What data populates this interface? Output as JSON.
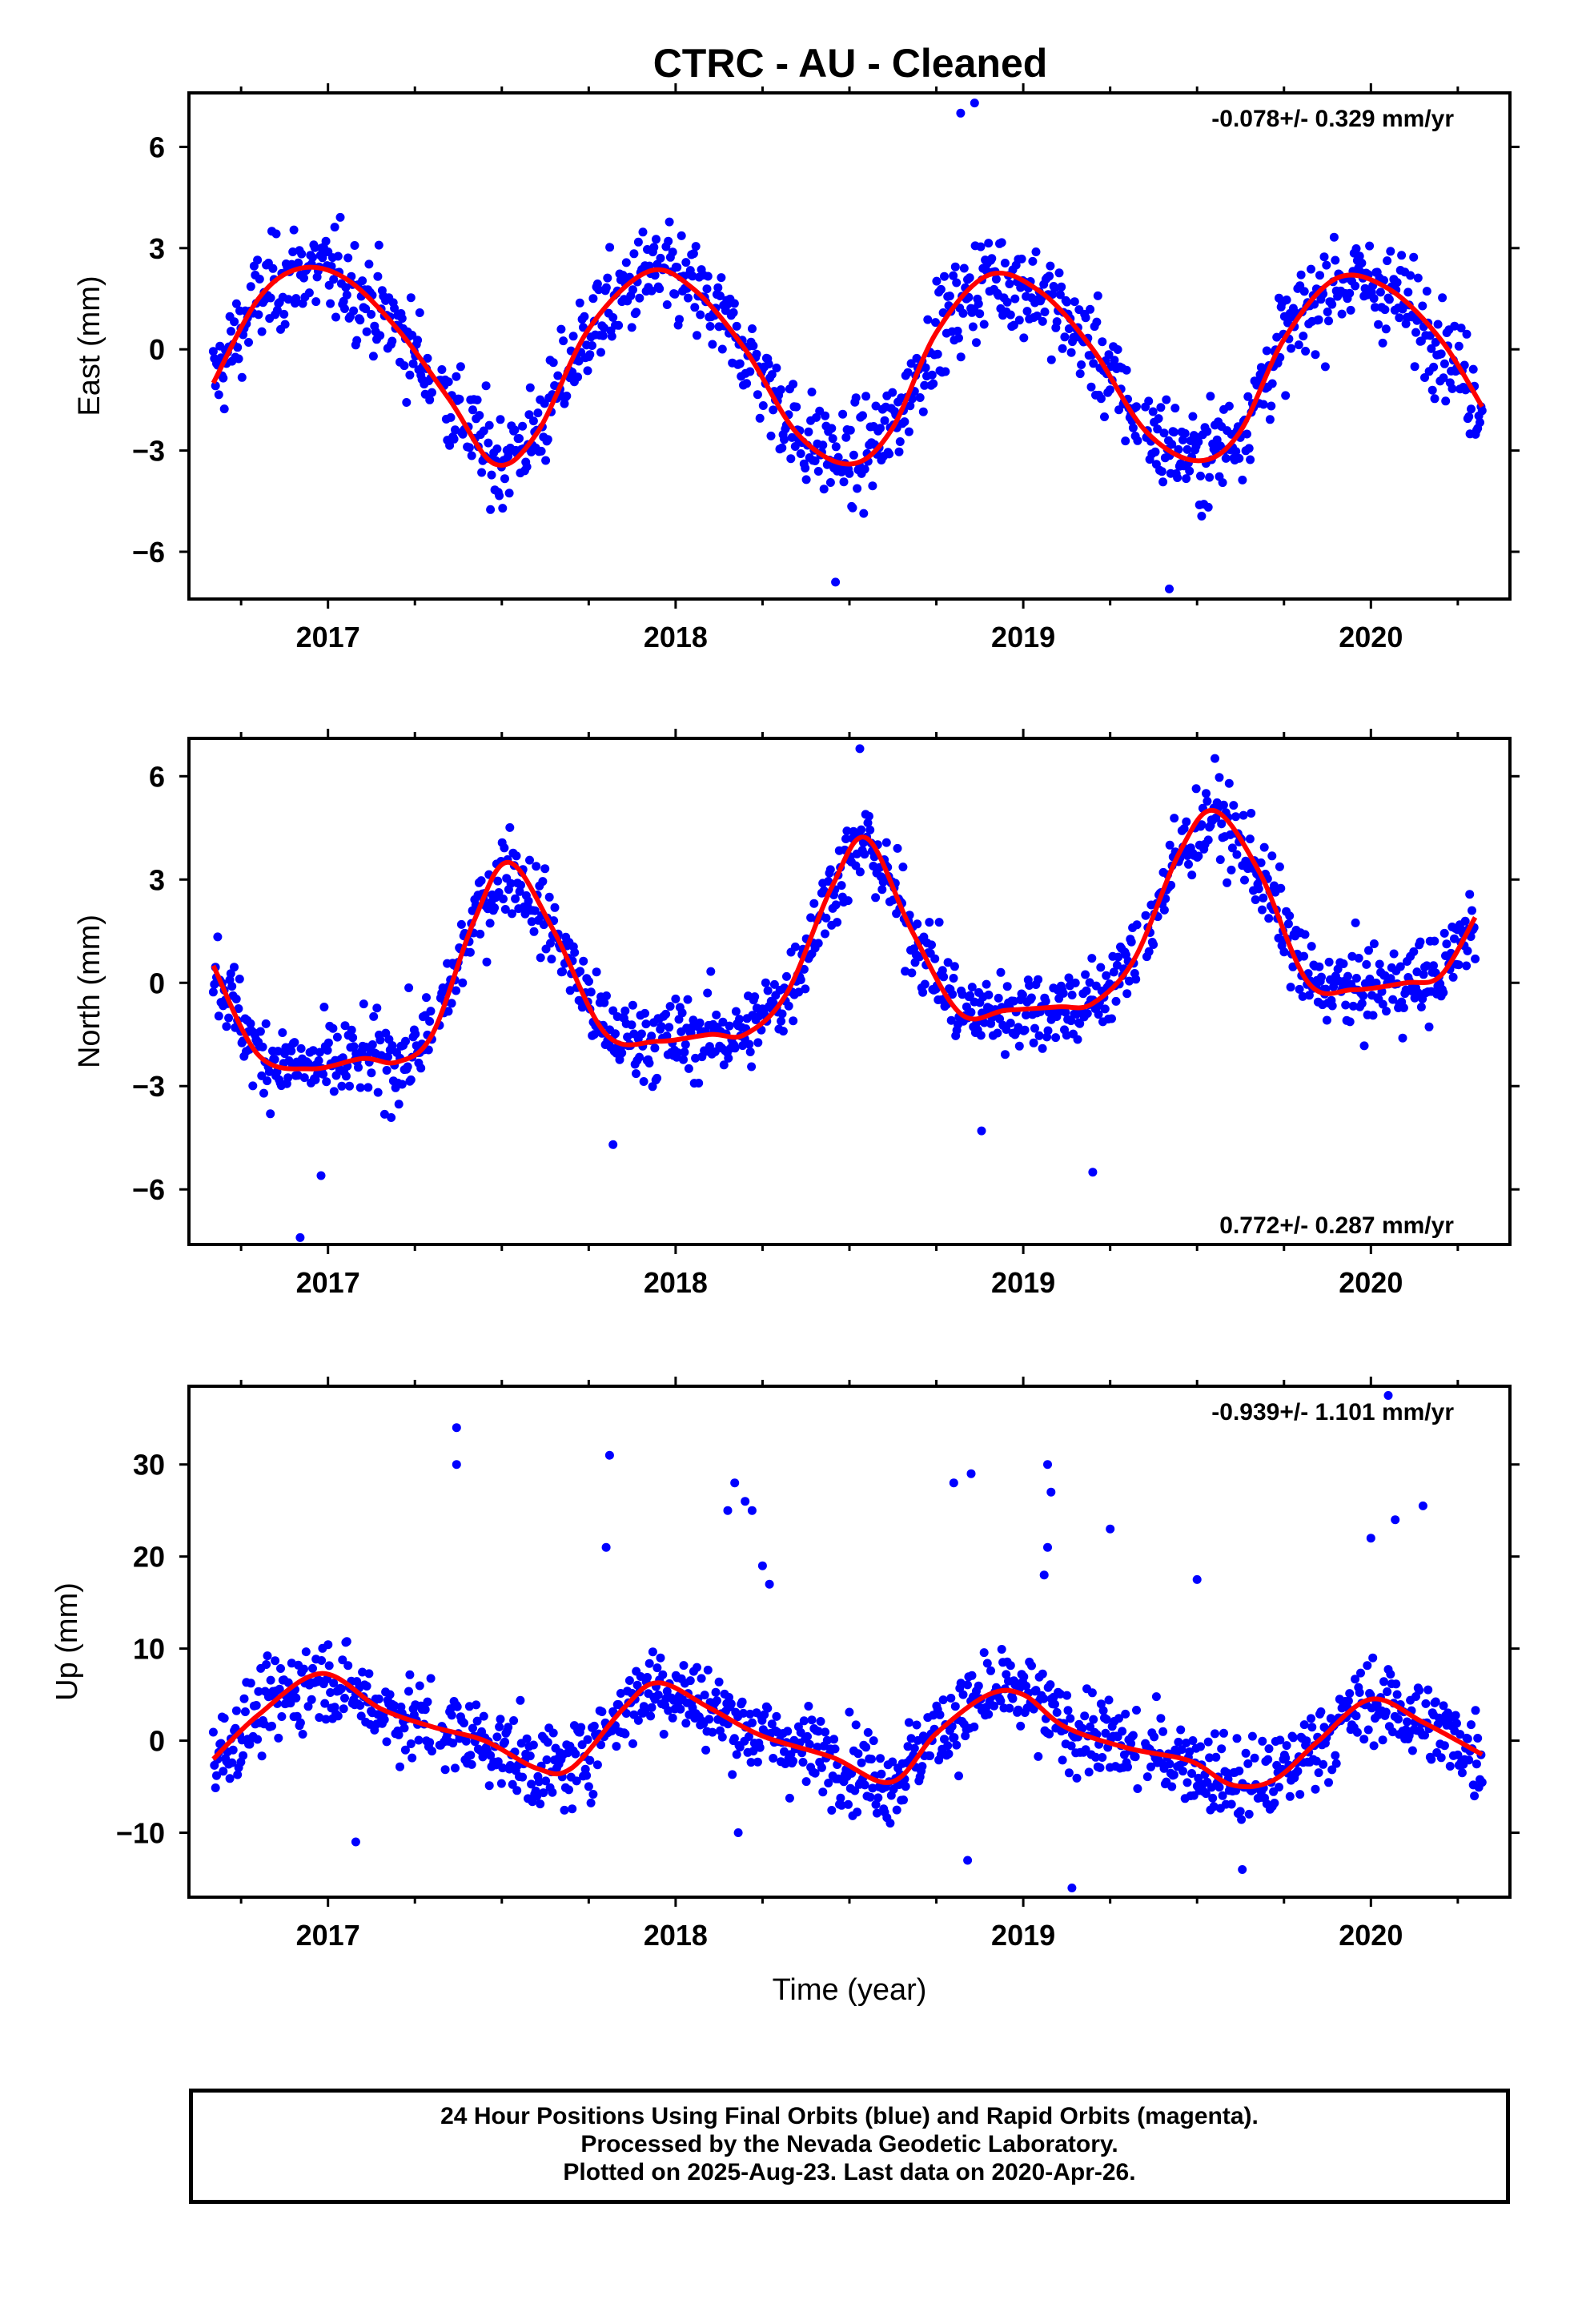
{
  "title": "CTRC  - AU - Cleaned",
  "footer": {
    "line1": "24 Hour Positions Using Final Orbits (blue) and Rapid Orbits (magenta).",
    "line2": "Processed by the Nevada Geodetic Laboratory.",
    "line3": "Plotted on 2025-Aug-23. Last data on 2020-Apr-26."
  },
  "colors": {
    "final_orbits": "#0000ff",
    "fit_curve": "#ff0000",
    "axes": "#000000"
  },
  "chart_data": [
    {
      "type": "scatter",
      "ylabel": "East (mm)",
      "xlabel": "",
      "rate": "-0.078+/- 0.329 mm/yr",
      "rate_position": "top-right",
      "xlim": [
        2016.6,
        2020.4
      ],
      "ylim": [
        -7.4,
        7.6
      ],
      "xticks": [
        2017,
        2018,
        2019,
        2020
      ],
      "yticks": [
        -6,
        -3,
        0,
        3,
        6
      ],
      "grid": false,
      "series": [
        {
          "kind": "points",
          "color": "#0000ff",
          "description_from_legend": "Final Orbits (blue)",
          "model": {
            "mean": -0.5,
            "slope": -0.078,
            "seasonal_amplitude": 2.9,
            "peak": 2016.92,
            "scatter": 1.0
          },
          "outliers": [
            [
              2018.82,
              7.0
            ],
            [
              2018.86,
              7.3
            ],
            [
              2019.42,
              -7.1
            ],
            [
              2018.46,
              -6.9
            ]
          ]
        },
        {
          "kind": "fit",
          "color": "#ff0000",
          "x": [
            2016.67,
            2016.8,
            2016.92,
            2017.05,
            2017.2,
            2017.35,
            2017.48,
            2017.6,
            2017.75,
            2017.92,
            2018.05,
            2018.2,
            2018.35,
            2018.5,
            2018.62,
            2018.75,
            2018.9,
            2019.05,
            2019.2,
            2019.35,
            2019.5,
            2019.62,
            2019.75,
            2019.9,
            2020.05,
            2020.2,
            2020.32
          ],
          "y": [
            -1.0,
            1.5,
            2.4,
            2.1,
            0.6,
            -1.5,
            -3.4,
            -2.5,
            0.6,
            2.3,
            1.8,
            0.0,
            -2.5,
            -3.4,
            -2.4,
            0.5,
            2.2,
            1.7,
            0.0,
            -2.4,
            -3.3,
            -2.5,
            0.3,
            2.1,
            1.8,
            0.3,
            -1.7
          ]
        }
      ]
    },
    {
      "type": "scatter",
      "ylabel": "North (mm)",
      "xlabel": "",
      "rate": "0.772+/- 0.287 mm/yr",
      "rate_position": "bottom-right",
      "xlim": [
        2016.6,
        2020.4
      ],
      "ylim": [
        -7.6,
        7.1
      ],
      "xticks": [
        2017,
        2018,
        2019,
        2020
      ],
      "yticks": [
        -6,
        -3,
        0,
        3,
        6
      ],
      "grid": false,
      "series": [
        {
          "kind": "points",
          "color": "#0000ff",
          "description_from_legend": "Final Orbits (blue)",
          "model": {
            "scatter": 0.85
          },
          "outliers": [
            [
              2016.92,
              -7.4
            ],
            [
              2016.98,
              -5.6
            ],
            [
              2018.53,
              6.8
            ],
            [
              2019.2,
              -5.5
            ],
            [
              2018.88,
              -4.3
            ],
            [
              2017.82,
              -4.7
            ]
          ]
        },
        {
          "kind": "fit",
          "color": "#ff0000",
          "x": [
            2016.67,
            2016.8,
            2016.95,
            2017.1,
            2017.2,
            2017.3,
            2017.42,
            2017.52,
            2017.65,
            2017.8,
            2017.95,
            2018.1,
            2018.2,
            2018.32,
            2018.45,
            2018.55,
            2018.68,
            2018.82,
            2018.95,
            2019.1,
            2019.2,
            2019.32,
            2019.45,
            2019.55,
            2019.68,
            2019.82,
            2019.95,
            2020.1,
            2020.2,
            2020.3
          ],
          "y": [
            0.5,
            -2.1,
            -2.5,
            -2.2,
            -2.3,
            -1.5,
            1.8,
            3.5,
            1.5,
            -1.5,
            -1.7,
            -1.5,
            -1.5,
            -0.3,
            2.8,
            4.2,
            1.5,
            -0.9,
            -0.8,
            -0.7,
            -0.6,
            0.7,
            3.8,
            5.0,
            3.2,
            0.0,
            -0.2,
            0.0,
            0.2,
            1.9
          ]
        }
      ]
    },
    {
      "type": "scatter",
      "ylabel": "Up (mm)",
      "xlabel": "Time (year)",
      "rate": "-0.939+/- 1.101 mm/yr",
      "rate_position": "top-right",
      "xlim": [
        2016.6,
        2020.4
      ],
      "ylim": [
        -17,
        38.5
      ],
      "xticks": [
        2017,
        2018,
        2019,
        2020
      ],
      "yticks": [
        -10,
        0,
        10,
        20,
        30
      ],
      "grid": false,
      "series": [
        {
          "kind": "points",
          "color": "#0000ff",
          "description_from_legend": "Final Orbits (blue)",
          "model": {
            "scatter": 3.2
          },
          "outliers": [
            [
              2017.37,
              34.0
            ],
            [
              2017.37,
              30.0
            ],
            [
              2017.81,
              31.0
            ],
            [
              2017.8,
              21.0
            ],
            [
              2018.15,
              25.0
            ],
            [
              2018.17,
              28.0
            ],
            [
              2018.2,
              26.0
            ],
            [
              2018.22,
              25.0
            ],
            [
              2018.25,
              19.0
            ],
            [
              2018.27,
              17.0
            ],
            [
              2018.85,
              29.0
            ],
            [
              2018.8,
              28.0
            ],
            [
              2019.07,
              30.0
            ],
            [
              2019.08,
              27.0
            ],
            [
              2019.07,
              21.0
            ],
            [
              2019.06,
              18.0
            ],
            [
              2019.25,
              23.0
            ],
            [
              2019.5,
              17.5
            ],
            [
              2020.05,
              37.5
            ],
            [
              2020.15,
              25.5
            ],
            [
              2020.07,
              24.0
            ],
            [
              2020.0,
              22.0
            ],
            [
              2019.14,
              -16.0
            ],
            [
              2018.84,
              -13.0
            ],
            [
              2017.08,
              -11.0
            ],
            [
              2018.18,
              -10.0
            ],
            [
              2019.63,
              -14.0
            ]
          ]
        },
        {
          "kind": "fit",
          "color": "#ff0000",
          "x": [
            2016.67,
            2016.8,
            2016.98,
            2017.15,
            2017.3,
            2017.45,
            2017.6,
            2017.7,
            2017.85,
            2017.95,
            2018.1,
            2018.25,
            2018.45,
            2018.62,
            2018.75,
            2018.9,
            2019.0,
            2019.12,
            2019.3,
            2019.48,
            2019.6,
            2019.72,
            2019.85,
            2020.0,
            2020.15,
            2020.32
          ],
          "y": [
            -2.0,
            2.8,
            7.3,
            3.5,
            1.5,
            0.0,
            -3.0,
            -3.0,
            3.5,
            6.3,
            3.5,
            0.5,
            -1.8,
            -4.5,
            0.8,
            5.0,
            5.0,
            1.5,
            -0.8,
            -2.2,
            -4.8,
            -4.3,
            0.0,
            4.5,
            2.0,
            -1.5
          ]
        }
      ]
    }
  ]
}
